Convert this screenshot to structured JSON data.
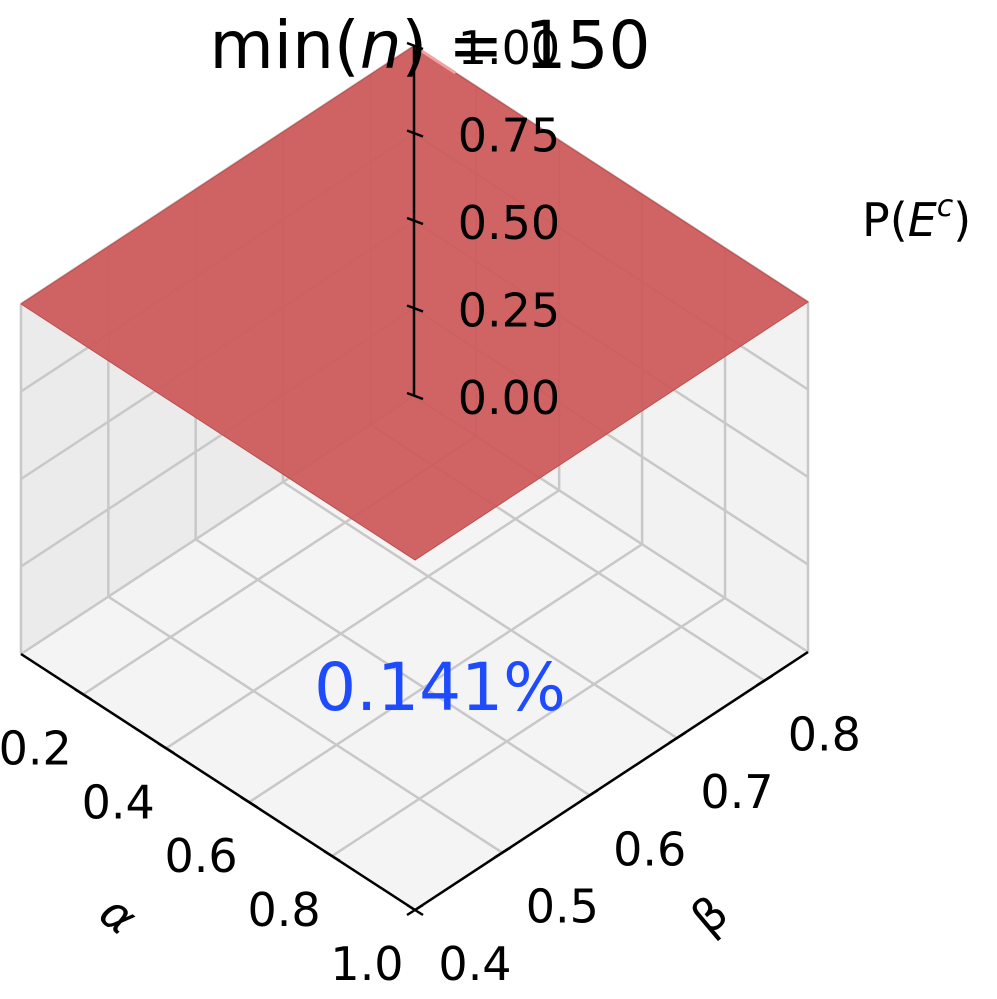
{
  "chart_data": {
    "type": "surface3d",
    "title": "min(n) = 150",
    "title_parts": {
      "prefix": "min(",
      "var": "n",
      "suffix": ") = 150"
    },
    "xlabel": "α",
    "ylabel": "β",
    "zlabel": "P(E^c)",
    "zlabel_parts": {
      "base": "P(",
      "var": "E",
      "sup": "c",
      "suffix": ")"
    },
    "xlim": [
      0.05,
      1.0
    ],
    "ylim": [
      0.4,
      0.85
    ],
    "zlim": [
      0.0,
      1.0
    ],
    "x_ticks": [
      "0.2",
      "0.4",
      "0.6",
      "0.8",
      "1.0"
    ],
    "y_ticks": [
      "0.4",
      "0.5",
      "0.6",
      "0.7",
      "0.8"
    ],
    "z_ticks": [
      "0.00",
      "0.25",
      "0.50",
      "0.75",
      "1.00"
    ],
    "x_tick_values": [
      0.2,
      0.4,
      0.6,
      0.8,
      1.0
    ],
    "y_tick_values": [
      0.4,
      0.5,
      0.6,
      0.7,
      0.8
    ],
    "z_tick_values": [
      0.0,
      0.25,
      0.5,
      0.75,
      1.0
    ],
    "surface": {
      "alpha_range": [
        0.05,
        1.0
      ],
      "beta_range": [
        0.4,
        0.85
      ],
      "value": 1.0,
      "color": "#cd5c5c"
    },
    "annotation": {
      "text": "0.141%",
      "color": "#1f4bff"
    },
    "grid": true
  }
}
